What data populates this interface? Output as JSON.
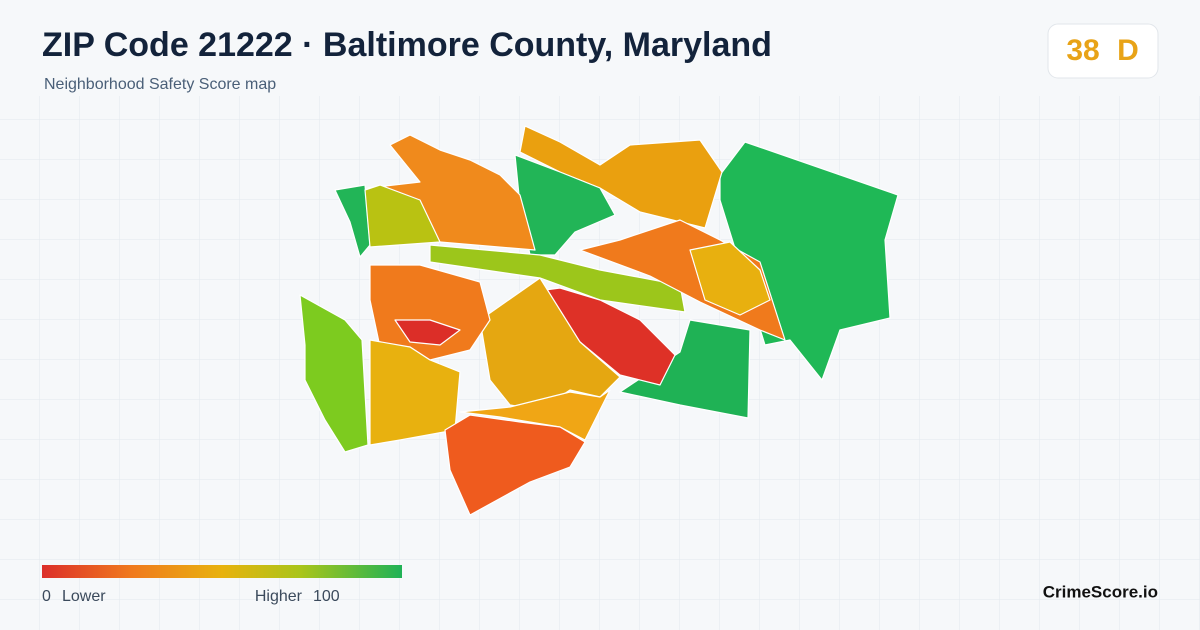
{
  "header": {
    "title": "ZIP Code 21222 · Baltimore County, Maryland",
    "subtitle": "Neighborhood Safety Score map"
  },
  "score": {
    "value": 38,
    "grade": "D"
  },
  "legend": {
    "min": 0,
    "min_label": "Lower",
    "max_label": "Higher",
    "max": 100
  },
  "brand": "CrimeScore.io"
}
